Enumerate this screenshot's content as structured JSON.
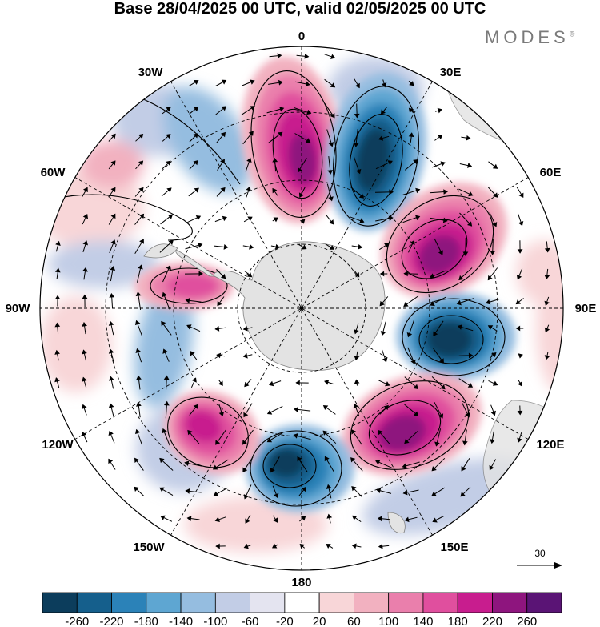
{
  "title": "Base 28/04/2025 00 UTC, valid 02/05/2025 00 UTC",
  "brand": "MODES",
  "brand_mark": "®",
  "longitude_labels": {
    "top": "0",
    "top_right": "30E",
    "right_upper": "60E",
    "right": "90E",
    "right_lower": "120E",
    "bottom_right": "150E",
    "bottom": "180",
    "bottom_left": "150W",
    "left_lower": "120W",
    "left": "90W",
    "left_upper": "60W",
    "top_left": "30W"
  },
  "reference_vector": {
    "label": "30"
  },
  "colorbar": {
    "labels": [
      "-260",
      "-220",
      "-180",
      "-140",
      "-100",
      "-60",
      "-20",
      "20",
      "60",
      "100",
      "140",
      "180",
      "220",
      "260"
    ],
    "colors": [
      "#0c3d5c",
      "#155f8c",
      "#2b82b8",
      "#5ea6d2",
      "#95bde0",
      "#c2cde6",
      "#e4e4f0",
      "#ffffff",
      "#f8d6d8",
      "#f2b1c0",
      "#ea7fac",
      "#e04f9e",
      "#c81d8e",
      "#8e157e",
      "#5a1475"
    ]
  },
  "colors": {
    "land": "#e3e3e3",
    "coast": "#808080",
    "grid": "#000000"
  }
}
